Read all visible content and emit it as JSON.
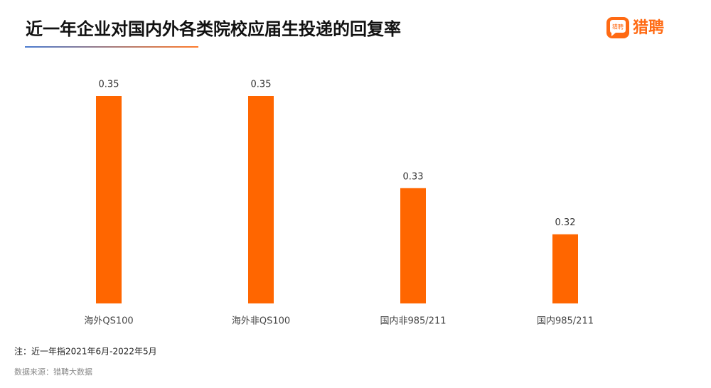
{
  "brand": "猎聘",
  "note": "注：近一年指2021年6月-2022年5月",
  "source": "数据来源：猎聘大数据",
  "chart_data": {
    "type": "bar",
    "title": "近一年企业对国内外各类院校应届生投递的回复率",
    "categories": [
      "海外QS100",
      "海外非QS100",
      "国内非985/211",
      "国内985/211"
    ],
    "values": [
      0.35,
      0.35,
      0.33,
      0.32
    ],
    "color": "#ff6600",
    "ylim": [
      0.305,
      0.35
    ]
  }
}
